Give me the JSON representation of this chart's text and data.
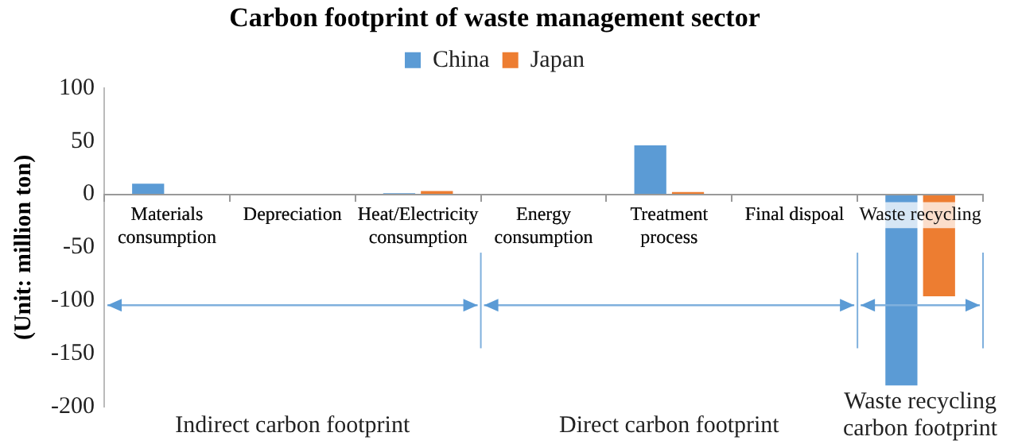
{
  "chart_data": {
    "type": "bar",
    "title": "Carbon footprint of waste management sector",
    "ylabel": "(Unit: million ton)",
    "categories": [
      "Materials consumption",
      "Depreciation",
      "Heat/Electricity consumption",
      "Energy consumption",
      "Treatment process",
      "Final dispoal",
      "Waste recycling"
    ],
    "series": [
      {
        "name": "China",
        "color": "#5b9bd5",
        "values": [
          10,
          0,
          1,
          0,
          46,
          0,
          -180
        ]
      },
      {
        "name": "Japan",
        "color": "#ed7d31",
        "values": [
          0,
          0,
          3,
          0,
          2,
          0,
          -96
        ]
      }
    ],
    "ylim": [
      -200,
      100
    ],
    "yticks": [
      -200,
      -150,
      -100,
      -50,
      0,
      50,
      100
    ],
    "grid": false,
    "legend": "top",
    "annotations": [
      "Indirect carbon footprint",
      "Direct carbon footprint",
      "Waste recycling carbon footprint"
    ]
  }
}
